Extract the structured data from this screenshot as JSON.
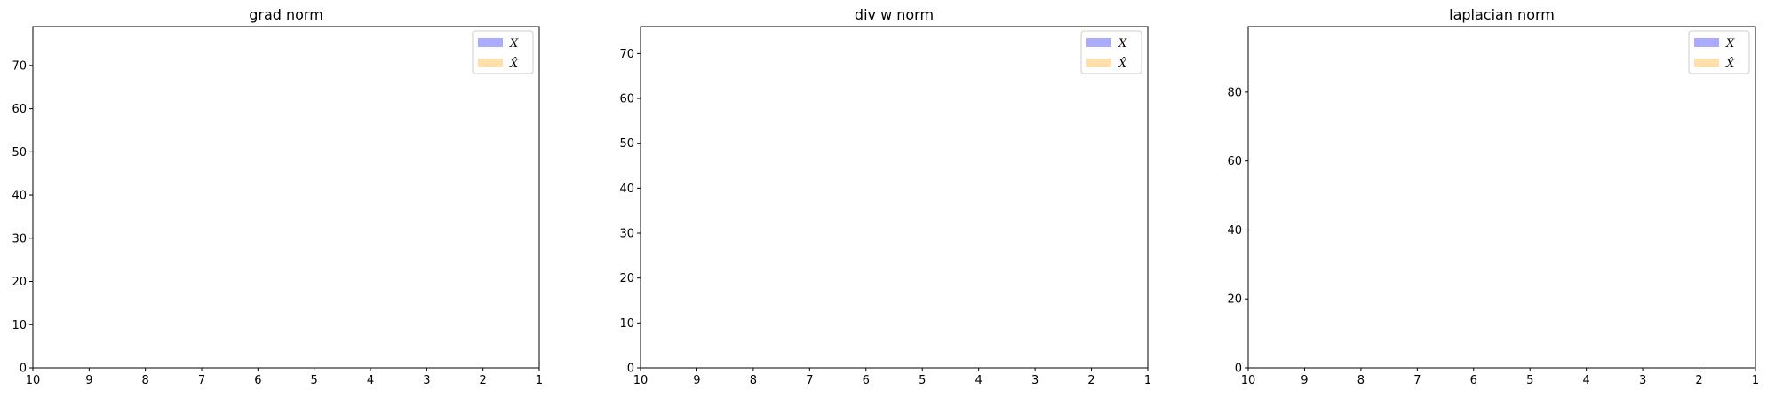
{
  "figure": {
    "background": "#ffffff"
  },
  "chart_data": [
    {
      "type": "bar",
      "title": "grad norm",
      "xlabel": "",
      "ylabel": "",
      "xlim": [
        10,
        1
      ],
      "ylim": [
        0,
        79
      ],
      "x_ticks": [
        "10",
        "9",
        "8",
        "7",
        "6",
        "5",
        "4",
        "3",
        "2",
        "1"
      ],
      "y_ticks": [
        "0",
        "10",
        "20",
        "30",
        "40",
        "50",
        "60",
        "70"
      ],
      "series": [
        {
          "name": "X",
          "color": "#aaaaff",
          "values": []
        },
        {
          "name": "X̂",
          "color": "#ffe0aa",
          "values": []
        }
      ],
      "legend": "top-right",
      "grid": false
    },
    {
      "type": "bar",
      "title": "div w norm",
      "xlabel": "",
      "ylabel": "",
      "xlim": [
        10,
        1
      ],
      "ylim": [
        0,
        76
      ],
      "x_ticks": [
        "10",
        "9",
        "8",
        "7",
        "6",
        "5",
        "4",
        "3",
        "2",
        "1"
      ],
      "y_ticks": [
        "0",
        "10",
        "20",
        "30",
        "40",
        "50",
        "60",
        "70"
      ],
      "series": [
        {
          "name": "X",
          "color": "#aaaaff",
          "values": []
        },
        {
          "name": "X̂",
          "color": "#ffe0aa",
          "values": []
        }
      ],
      "legend": "top-right",
      "grid": false
    },
    {
      "type": "bar",
      "title": "laplacian norm",
      "xlabel": "",
      "ylabel": "",
      "xlim": [
        10,
        1
      ],
      "ylim": [
        0,
        99
      ],
      "x_ticks": [
        "10",
        "9",
        "8",
        "7",
        "6",
        "5",
        "4",
        "3",
        "2",
        "1"
      ],
      "y_ticks": [
        "0",
        "20",
        "40",
        "60",
        "80"
      ],
      "series": [
        {
          "name": "X",
          "color": "#aaaaff",
          "values": []
        },
        {
          "name": "X̂",
          "color": "#ffe0aa",
          "values": []
        }
      ],
      "legend": "top-right",
      "grid": false
    }
  ]
}
